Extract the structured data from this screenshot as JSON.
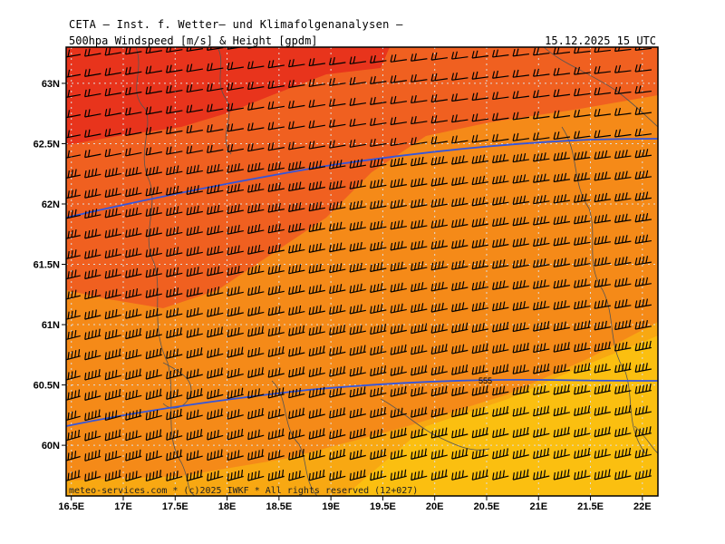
{
  "header": {
    "title": "CETA — Inst. f. Wetter— und Klimafolgenanalysen —",
    "parameter": "500hpa_Windspeed_[m/s]_&_Height_[gpdm]",
    "valid_time": "15.12.2025  15 UTC"
  },
  "footer": {
    "copyright": "meteo-services.com * (c)2025 IWKF * All rights reserved (12+027)"
  },
  "map": {
    "lon_range": [
      16.45,
      22.15
    ],
    "lat_range": [
      59.58,
      63.3
    ],
    "lon_ticks": [
      "16.5E",
      "17E",
      "17.5E",
      "18E",
      "18.5E",
      "19E",
      "19.5E",
      "20E",
      "20.5E",
      "21E",
      "21.5E",
      "22E"
    ],
    "lat_ticks": [
      "60N",
      "60.5N",
      "61N",
      "61.5N",
      "62N",
      "62.5N",
      "63N"
    ],
    "lon_tick_values": [
      16.5,
      17,
      17.5,
      18,
      18.5,
      19,
      19.5,
      20,
      20.5,
      21,
      21.5,
      22
    ],
    "lat_tick_values": [
      60,
      60.5,
      61,
      61.5,
      62,
      62.5,
      63
    ],
    "contour_label": "555",
    "colors": {
      "wind_strongest": "#e8341c",
      "wind_strong": "#f06020",
      "wind_mid": "#f58a18",
      "wind_weak": "#f8a812",
      "wind_weakest": "#fbbf10",
      "height_contour": "#3355dd",
      "barb": "#000000",
      "coastline": "#555555",
      "gridline": "#dddddd"
    }
  }
}
